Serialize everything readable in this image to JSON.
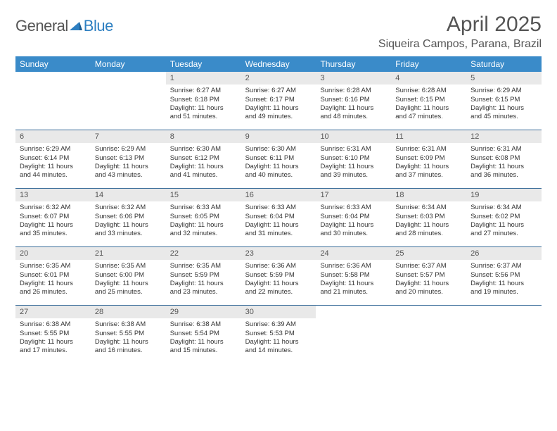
{
  "logo": {
    "text1": "General",
    "text2": "Blue"
  },
  "title": "April 2025",
  "location": "Siqueira Campos, Parana, Brazil",
  "colors": {
    "header_bg": "#3a8bc9",
    "week_border": "#3a6d9a",
    "daynum_bg": "#e9e9e9",
    "text": "#333333",
    "muted": "#555555"
  },
  "dow": [
    "Sunday",
    "Monday",
    "Tuesday",
    "Wednesday",
    "Thursday",
    "Friday",
    "Saturday"
  ],
  "weeks": [
    [
      {
        "n": "",
        "lines": [
          "",
          "",
          "",
          ""
        ]
      },
      {
        "n": "",
        "lines": [
          "",
          "",
          "",
          ""
        ]
      },
      {
        "n": "1",
        "lines": [
          "Sunrise: 6:27 AM",
          "Sunset: 6:18 PM",
          "Daylight: 11 hours",
          "and 51 minutes."
        ]
      },
      {
        "n": "2",
        "lines": [
          "Sunrise: 6:27 AM",
          "Sunset: 6:17 PM",
          "Daylight: 11 hours",
          "and 49 minutes."
        ]
      },
      {
        "n": "3",
        "lines": [
          "Sunrise: 6:28 AM",
          "Sunset: 6:16 PM",
          "Daylight: 11 hours",
          "and 48 minutes."
        ]
      },
      {
        "n": "4",
        "lines": [
          "Sunrise: 6:28 AM",
          "Sunset: 6:15 PM",
          "Daylight: 11 hours",
          "and 47 minutes."
        ]
      },
      {
        "n": "5",
        "lines": [
          "Sunrise: 6:29 AM",
          "Sunset: 6:15 PM",
          "Daylight: 11 hours",
          "and 45 minutes."
        ]
      }
    ],
    [
      {
        "n": "6",
        "lines": [
          "Sunrise: 6:29 AM",
          "Sunset: 6:14 PM",
          "Daylight: 11 hours",
          "and 44 minutes."
        ]
      },
      {
        "n": "7",
        "lines": [
          "Sunrise: 6:29 AM",
          "Sunset: 6:13 PM",
          "Daylight: 11 hours",
          "and 43 minutes."
        ]
      },
      {
        "n": "8",
        "lines": [
          "Sunrise: 6:30 AM",
          "Sunset: 6:12 PM",
          "Daylight: 11 hours",
          "and 41 minutes."
        ]
      },
      {
        "n": "9",
        "lines": [
          "Sunrise: 6:30 AM",
          "Sunset: 6:11 PM",
          "Daylight: 11 hours",
          "and 40 minutes."
        ]
      },
      {
        "n": "10",
        "lines": [
          "Sunrise: 6:31 AM",
          "Sunset: 6:10 PM",
          "Daylight: 11 hours",
          "and 39 minutes."
        ]
      },
      {
        "n": "11",
        "lines": [
          "Sunrise: 6:31 AM",
          "Sunset: 6:09 PM",
          "Daylight: 11 hours",
          "and 37 minutes."
        ]
      },
      {
        "n": "12",
        "lines": [
          "Sunrise: 6:31 AM",
          "Sunset: 6:08 PM",
          "Daylight: 11 hours",
          "and 36 minutes."
        ]
      }
    ],
    [
      {
        "n": "13",
        "lines": [
          "Sunrise: 6:32 AM",
          "Sunset: 6:07 PM",
          "Daylight: 11 hours",
          "and 35 minutes."
        ]
      },
      {
        "n": "14",
        "lines": [
          "Sunrise: 6:32 AM",
          "Sunset: 6:06 PM",
          "Daylight: 11 hours",
          "and 33 minutes."
        ]
      },
      {
        "n": "15",
        "lines": [
          "Sunrise: 6:33 AM",
          "Sunset: 6:05 PM",
          "Daylight: 11 hours",
          "and 32 minutes."
        ]
      },
      {
        "n": "16",
        "lines": [
          "Sunrise: 6:33 AM",
          "Sunset: 6:04 PM",
          "Daylight: 11 hours",
          "and 31 minutes."
        ]
      },
      {
        "n": "17",
        "lines": [
          "Sunrise: 6:33 AM",
          "Sunset: 6:04 PM",
          "Daylight: 11 hours",
          "and 30 minutes."
        ]
      },
      {
        "n": "18",
        "lines": [
          "Sunrise: 6:34 AM",
          "Sunset: 6:03 PM",
          "Daylight: 11 hours",
          "and 28 minutes."
        ]
      },
      {
        "n": "19",
        "lines": [
          "Sunrise: 6:34 AM",
          "Sunset: 6:02 PM",
          "Daylight: 11 hours",
          "and 27 minutes."
        ]
      }
    ],
    [
      {
        "n": "20",
        "lines": [
          "Sunrise: 6:35 AM",
          "Sunset: 6:01 PM",
          "Daylight: 11 hours",
          "and 26 minutes."
        ]
      },
      {
        "n": "21",
        "lines": [
          "Sunrise: 6:35 AM",
          "Sunset: 6:00 PM",
          "Daylight: 11 hours",
          "and 25 minutes."
        ]
      },
      {
        "n": "22",
        "lines": [
          "Sunrise: 6:35 AM",
          "Sunset: 5:59 PM",
          "Daylight: 11 hours",
          "and 23 minutes."
        ]
      },
      {
        "n": "23",
        "lines": [
          "Sunrise: 6:36 AM",
          "Sunset: 5:59 PM",
          "Daylight: 11 hours",
          "and 22 minutes."
        ]
      },
      {
        "n": "24",
        "lines": [
          "Sunrise: 6:36 AM",
          "Sunset: 5:58 PM",
          "Daylight: 11 hours",
          "and 21 minutes."
        ]
      },
      {
        "n": "25",
        "lines": [
          "Sunrise: 6:37 AM",
          "Sunset: 5:57 PM",
          "Daylight: 11 hours",
          "and 20 minutes."
        ]
      },
      {
        "n": "26",
        "lines": [
          "Sunrise: 6:37 AM",
          "Sunset: 5:56 PM",
          "Daylight: 11 hours",
          "and 19 minutes."
        ]
      }
    ],
    [
      {
        "n": "27",
        "lines": [
          "Sunrise: 6:38 AM",
          "Sunset: 5:55 PM",
          "Daylight: 11 hours",
          "and 17 minutes."
        ]
      },
      {
        "n": "28",
        "lines": [
          "Sunrise: 6:38 AM",
          "Sunset: 5:55 PM",
          "Daylight: 11 hours",
          "and 16 minutes."
        ]
      },
      {
        "n": "29",
        "lines": [
          "Sunrise: 6:38 AM",
          "Sunset: 5:54 PM",
          "Daylight: 11 hours",
          "and 15 minutes."
        ]
      },
      {
        "n": "30",
        "lines": [
          "Sunrise: 6:39 AM",
          "Sunset: 5:53 PM",
          "Daylight: 11 hours",
          "and 14 minutes."
        ]
      },
      {
        "n": "",
        "lines": [
          "",
          "",
          "",
          ""
        ]
      },
      {
        "n": "",
        "lines": [
          "",
          "",
          "",
          ""
        ]
      },
      {
        "n": "",
        "lines": [
          "",
          "",
          "",
          ""
        ]
      }
    ]
  ]
}
